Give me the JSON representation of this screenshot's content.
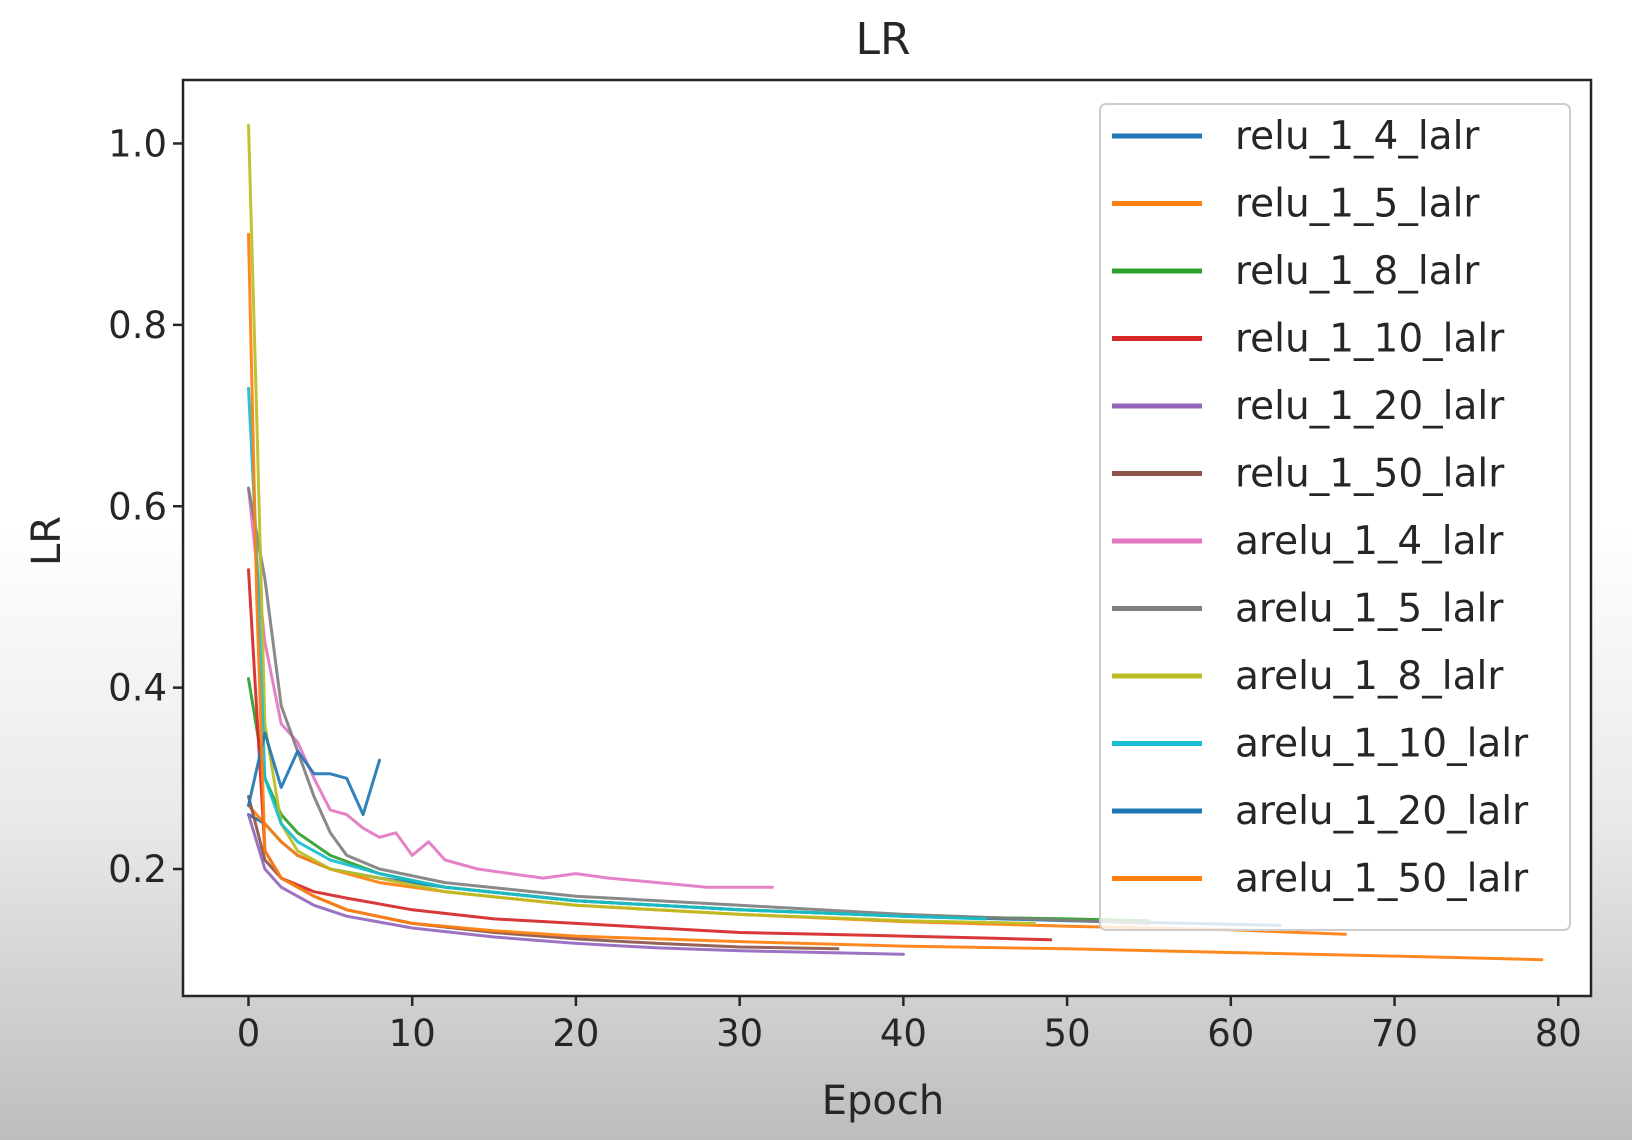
{
  "chart_data": {
    "type": "line",
    "title": "LR",
    "xlabel": "Epoch",
    "ylabel": "LR",
    "xlim": [
      -4,
      82
    ],
    "ylim": [
      0.06,
      1.07
    ],
    "x_ticks": [
      0,
      10,
      20,
      30,
      40,
      50,
      60,
      70,
      80
    ],
    "x_tick_labels": [
      "0",
      "10",
      "20",
      "30",
      "40",
      "50",
      "60",
      "70",
      "80"
    ],
    "y_ticks": [
      0.2,
      0.4,
      0.6,
      0.8,
      1.0
    ],
    "y_tick_labels": [
      "0.2",
      "0.4",
      "0.6",
      "0.8",
      "1.0"
    ],
    "grid": false,
    "legend_position": "top-right",
    "series": [
      {
        "name": "relu_1_4_lalr",
        "color": "#1f77b4",
        "x": [
          0,
          1,
          2,
          3,
          5,
          8,
          12,
          20,
          30,
          40,
          50,
          63
        ],
        "y": [
          0.26,
          0.25,
          0.23,
          0.215,
          0.2,
          0.19,
          0.18,
          0.165,
          0.155,
          0.148,
          0.143,
          0.138
        ]
      },
      {
        "name": "relu_1_5_lalr",
        "color": "#ff7f0e",
        "x": [
          0,
          1,
          2,
          3,
          5,
          8,
          12,
          20,
          30,
          40,
          50,
          60,
          67
        ],
        "y": [
          0.27,
          0.25,
          0.23,
          0.215,
          0.2,
          0.185,
          0.175,
          0.16,
          0.15,
          0.142,
          0.137,
          0.133,
          0.128
        ]
      },
      {
        "name": "relu_1_8_lalr",
        "color": "#2ca02c",
        "x": [
          0,
          1,
          2,
          3,
          5,
          8,
          12,
          20,
          30,
          40,
          50,
          55
        ],
        "y": [
          0.41,
          0.3,
          0.26,
          0.24,
          0.215,
          0.195,
          0.18,
          0.165,
          0.155,
          0.148,
          0.145,
          0.143
        ]
      },
      {
        "name": "relu_1_10_lalr",
        "color": "#d62728",
        "x": [
          0,
          1,
          2,
          4,
          6,
          10,
          15,
          20,
          25,
          30,
          35,
          40,
          45,
          49
        ],
        "y": [
          0.53,
          0.22,
          0.19,
          0.175,
          0.168,
          0.155,
          0.145,
          0.14,
          0.135,
          0.13,
          0.128,
          0.126,
          0.124,
          0.122
        ]
      },
      {
        "name": "relu_1_20_lalr",
        "color": "#9467bd",
        "x": [
          0,
          1,
          2,
          4,
          6,
          10,
          15,
          20,
          25,
          30,
          35,
          40
        ],
        "y": [
          0.26,
          0.2,
          0.18,
          0.16,
          0.148,
          0.135,
          0.125,
          0.118,
          0.113,
          0.11,
          0.108,
          0.106
        ]
      },
      {
        "name": "relu_1_50_lalr",
        "color": "#8c564b",
        "x": [
          0,
          1,
          2,
          4,
          6,
          10,
          15,
          20,
          25,
          30,
          36
        ],
        "y": [
          0.28,
          0.21,
          0.19,
          0.17,
          0.155,
          0.14,
          0.13,
          0.123,
          0.118,
          0.114,
          0.112
        ]
      },
      {
        "name": "arelu_1_4_lalr",
        "color": "#e377c2",
        "x": [
          0,
          1,
          2,
          3,
          4,
          5,
          6,
          7,
          8,
          9,
          10,
          11,
          12,
          14,
          16,
          18,
          20,
          22,
          25,
          28,
          30,
          32
        ],
        "y": [
          0.62,
          0.45,
          0.36,
          0.34,
          0.3,
          0.265,
          0.26,
          0.245,
          0.235,
          0.24,
          0.215,
          0.23,
          0.21,
          0.2,
          0.195,
          0.19,
          0.195,
          0.19,
          0.185,
          0.18,
          0.18,
          0.18
        ]
      },
      {
        "name": "arelu_1_5_lalr",
        "color": "#7f7f7f",
        "x": [
          0,
          1,
          2,
          3,
          4,
          5,
          6,
          8,
          12,
          20,
          30,
          40,
          55
        ],
        "y": [
          0.62,
          0.52,
          0.38,
          0.33,
          0.28,
          0.24,
          0.215,
          0.2,
          0.185,
          0.17,
          0.16,
          0.15,
          0.14
        ]
      },
      {
        "name": "arelu_1_8_lalr",
        "color": "#bcbd22",
        "x": [
          0,
          0.5,
          1,
          2,
          3,
          5,
          8,
          12,
          20,
          30,
          40,
          48
        ],
        "y": [
          1.02,
          0.7,
          0.36,
          0.25,
          0.22,
          0.2,
          0.19,
          0.175,
          0.16,
          0.15,
          0.143,
          0.14
        ]
      },
      {
        "name": "arelu_1_10_lalr",
        "color": "#17becf",
        "x": [
          0,
          0.5,
          1,
          2,
          3,
          5,
          8,
          12,
          20,
          30,
          40,
          45
        ],
        "y": [
          0.73,
          0.55,
          0.3,
          0.25,
          0.23,
          0.21,
          0.195,
          0.18,
          0.165,
          0.155,
          0.148,
          0.145
        ]
      },
      {
        "name": "arelu_1_20_lalr",
        "color": "#1f77b4",
        "x": [
          0,
          1,
          2,
          3,
          4,
          5,
          6,
          7,
          8
        ],
        "y": [
          0.27,
          0.35,
          0.29,
          0.33,
          0.305,
          0.305,
          0.3,
          0.26,
          0.32
        ]
      },
      {
        "name": "arelu_1_50_lalr",
        "color": "#ff7f0e",
        "x": [
          0,
          0.5,
          1,
          2,
          4,
          6,
          10,
          15,
          20,
          30,
          40,
          50,
          60,
          70,
          79
        ],
        "y": [
          0.9,
          0.5,
          0.22,
          0.19,
          0.17,
          0.155,
          0.14,
          0.132,
          0.126,
          0.12,
          0.115,
          0.112,
          0.108,
          0.104,
          0.1
        ]
      }
    ]
  }
}
